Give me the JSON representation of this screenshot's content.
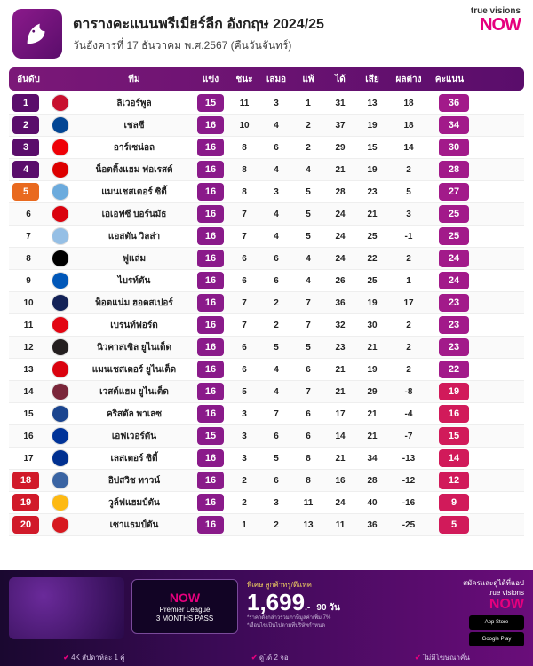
{
  "brand": {
    "line1": "true visions",
    "line2": "NOW"
  },
  "header": {
    "title": "ตารางคะแนนพรีเมียร์ลีก อังกฤษ 2024/25",
    "date": "วันอังคารที่ 17 ธันวาคม พ.ศ.2567 (คืนวันจันทร์)"
  },
  "columns": {
    "rank": "อันดับ",
    "team": "ทีม",
    "played": "แข่ง",
    "won": "ชนะ",
    "drawn": "เสมอ",
    "lost": "แพ้",
    "gf": "ได้",
    "ga": "เสีย",
    "gd": "ผลต่าง",
    "pts": "คะแนน"
  },
  "colors": {
    "rank_default": "#5a0d6b",
    "rank_alt": "#e96a1f",
    "rank_red": "#d11a2a",
    "played_pill": "#8a1a8a",
    "pts_pill_a": "#a21a8a",
    "pts_pill_b": "#d11a5a"
  },
  "rows": [
    {
      "rank": 1,
      "rank_color": "#5a0d6b",
      "team": "ลิเวอร์พูล",
      "crest": "#c8102e",
      "p": 15,
      "w": 11,
      "d": 3,
      "l": 1,
      "gf": 31,
      "ga": 13,
      "gd": 18,
      "pts": 36
    },
    {
      "rank": 2,
      "rank_color": "#5a0d6b",
      "team": "เชลซี",
      "crest": "#034694",
      "p": 16,
      "w": 10,
      "d": 4,
      "l": 2,
      "gf": 37,
      "ga": 19,
      "gd": 18,
      "pts": 34
    },
    {
      "rank": 3,
      "rank_color": "#5a0d6b",
      "team": "อาร์เซน่อล",
      "crest": "#ef0107",
      "p": 16,
      "w": 8,
      "d": 6,
      "l": 2,
      "gf": 29,
      "ga": 15,
      "gd": 14,
      "pts": 30
    },
    {
      "rank": 4,
      "rank_color": "#5a0d6b",
      "team": "น็อตติ้งแฮม ฟอเรสต์",
      "crest": "#dd0000",
      "p": 16,
      "w": 8,
      "d": 4,
      "l": 4,
      "gf": 21,
      "ga": 19,
      "gd": 2,
      "pts": 28
    },
    {
      "rank": 5,
      "rank_color": "#e96a1f",
      "team": "แมนเชสเตอร์ ซิตี้",
      "crest": "#6cabdd",
      "p": 16,
      "w": 8,
      "d": 3,
      "l": 5,
      "gf": 28,
      "ga": 23,
      "gd": 5,
      "pts": 27
    },
    {
      "rank": 6,
      "rank_color": "none",
      "team": "เอเอฟซี บอร์นมัธ",
      "crest": "#da020e",
      "p": 16,
      "w": 7,
      "d": 4,
      "l": 5,
      "gf": 24,
      "ga": 21,
      "gd": 3,
      "pts": 25
    },
    {
      "rank": 7,
      "rank_color": "none",
      "team": "แอสตัน วิลล่า",
      "crest": "#95bfe5",
      "p": 16,
      "w": 7,
      "d": 4,
      "l": 5,
      "gf": 24,
      "ga": 25,
      "gd": -1,
      "pts": 25
    },
    {
      "rank": 8,
      "rank_color": "none",
      "team": "ฟูแล่ม",
      "crest": "#000000",
      "p": 16,
      "w": 6,
      "d": 6,
      "l": 4,
      "gf": 24,
      "ga": 22,
      "gd": 2,
      "pts": 24
    },
    {
      "rank": 9,
      "rank_color": "none",
      "team": "ไบรท์ตัน",
      "crest": "#0057b8",
      "p": 16,
      "w": 6,
      "d": 6,
      "l": 4,
      "gf": 26,
      "ga": 25,
      "gd": 1,
      "pts": 24
    },
    {
      "rank": 10,
      "rank_color": "none",
      "team": "ท็อตแน่ม ฮอตสเปอร์",
      "crest": "#132257",
      "p": 16,
      "w": 7,
      "d": 2,
      "l": 7,
      "gf": 36,
      "ga": 19,
      "gd": 17,
      "pts": 23
    },
    {
      "rank": 11,
      "rank_color": "none",
      "team": "เบรนท์ฟอร์ด",
      "crest": "#e30613",
      "p": 16,
      "w": 7,
      "d": 2,
      "l": 7,
      "gf": 32,
      "ga": 30,
      "gd": 2,
      "pts": 23
    },
    {
      "rank": 12,
      "rank_color": "none",
      "team": "นิวคาสเซิล ยูไนเต็ด",
      "crest": "#241f20",
      "p": 16,
      "w": 6,
      "d": 5,
      "l": 5,
      "gf": 23,
      "ga": 21,
      "gd": 2,
      "pts": 23
    },
    {
      "rank": 13,
      "rank_color": "none",
      "team": "แมนเชสเตอร์ ยูไนเต็ด",
      "crest": "#da020e",
      "p": 16,
      "w": 6,
      "d": 4,
      "l": 6,
      "gf": 21,
      "ga": 19,
      "gd": 2,
      "pts": 22
    },
    {
      "rank": 14,
      "rank_color": "none",
      "team": "เวสต์แฮม ยูไนเต็ด",
      "crest": "#7a263a",
      "p": 16,
      "w": 5,
      "d": 4,
      "l": 7,
      "gf": 21,
      "ga": 29,
      "gd": -8,
      "pts": 19
    },
    {
      "rank": 15,
      "rank_color": "none",
      "team": "คริสตัล พาเลซ",
      "crest": "#1b458f",
      "p": 16,
      "w": 3,
      "d": 7,
      "l": 6,
      "gf": 17,
      "ga": 21,
      "gd": -4,
      "pts": 16
    },
    {
      "rank": 16,
      "rank_color": "none",
      "team": "เอฟเวอร์ตัน",
      "crest": "#003399",
      "p": 15,
      "w": 3,
      "d": 6,
      "l": 6,
      "gf": 14,
      "ga": 21,
      "gd": -7,
      "pts": 15
    },
    {
      "rank": 17,
      "rank_color": "none",
      "team": "เลสเตอร์ ซิตี้",
      "crest": "#003090",
      "p": 16,
      "w": 3,
      "d": 5,
      "l": 8,
      "gf": 21,
      "ga": 34,
      "gd": -13,
      "pts": 14
    },
    {
      "rank": 18,
      "rank_color": "#d11a2a",
      "team": "อิปสวิช ทาวน์",
      "crest": "#3a64a3",
      "p": 16,
      "w": 2,
      "d": 6,
      "l": 8,
      "gf": 16,
      "ga": 28,
      "gd": -12,
      "pts": 12
    },
    {
      "rank": 19,
      "rank_color": "#d11a2a",
      "team": "วูล์ฟแฮมป์ตัน",
      "crest": "#fdb913",
      "p": 16,
      "w": 2,
      "d": 3,
      "l": 11,
      "gf": 24,
      "ga": 40,
      "gd": -16,
      "pts": 9
    },
    {
      "rank": 20,
      "rank_color": "#d11a2a",
      "team": "เซาแธมป์ตัน",
      "crest": "#d71920",
      "p": 16,
      "w": 1,
      "d": 2,
      "l": 13,
      "gf": 11,
      "ga": 36,
      "gd": -25,
      "pts": 5
    }
  ],
  "footer": {
    "pass_now": "NOW",
    "pass_line1": "Premier League",
    "pass_line2": "3 MONTHS PASS",
    "promo_sub": "พิเศษ ลูกค้าทรู/ดีแทค",
    "price": "1,699",
    "price_unit": ".-",
    "duration": "90 วัน",
    "note1": "*ราคาดังกล่าวรวมภาษีมูลค่าเพิ่ม 7%",
    "note2": "*เงื่อนไขเป็นไปตามที่บริษัทกำหนด",
    "right_lbl": "สมัครและดูได้ที่แอป",
    "right_tv": "true visions",
    "right_now": "NOW",
    "store1": "App Store",
    "store2": "Google Play",
    "b1": "4K สัปดาห์ละ 1 คู่",
    "b2": "ดูได้ 2 จอ",
    "b3": "ไม่มีโฆษณาคั่น"
  }
}
